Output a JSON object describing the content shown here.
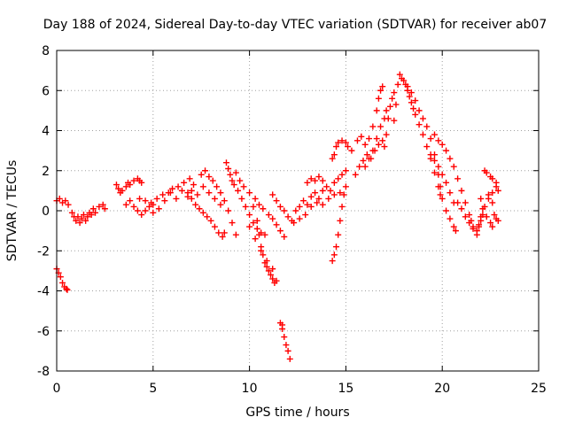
{
  "chart_data": {
    "type": "scatter",
    "title": "Day 188 of 2024, Sidereal Day-to-day VTEC variation (SDTVAR) for receiver ab07",
    "xlabel": "GPS time / hours",
    "ylabel": "SDTVAR / TECUs",
    "xlim": [
      0,
      25
    ],
    "ylim": [
      -8,
      8
    ],
    "xticks": [
      0,
      5,
      10,
      15,
      20,
      25
    ],
    "yticks": [
      -8,
      -6,
      -4,
      -2,
      0,
      2,
      4,
      6,
      8
    ],
    "grid": true,
    "marker": "+",
    "color": "#ff0000",
    "series": [
      {
        "name": "SDTVAR",
        "points": [
          [
            0.0,
            0.5
          ],
          [
            0.15,
            0.6
          ],
          [
            0.3,
            0.4
          ],
          [
            0.45,
            0.5
          ],
          [
            0.6,
            0.3
          ],
          [
            0.0,
            -2.9
          ],
          [
            0.1,
            -3.1
          ],
          [
            0.2,
            -3.3
          ],
          [
            0.3,
            -3.6
          ],
          [
            0.4,
            -3.8
          ],
          [
            0.5,
            -3.9
          ],
          [
            0.55,
            -3.95
          ],
          [
            0.8,
            -0.1
          ],
          [
            0.9,
            -0.3
          ],
          [
            1.0,
            -0.5
          ],
          [
            1.1,
            -0.3
          ],
          [
            1.2,
            -0.6
          ],
          [
            1.3,
            -0.4
          ],
          [
            1.4,
            -0.2
          ],
          [
            1.5,
            -0.5
          ],
          [
            1.6,
            -0.3
          ],
          [
            1.7,
            -0.1
          ],
          [
            1.8,
            -0.2
          ],
          [
            1.9,
            0.1
          ],
          [
            2.0,
            -0.1
          ],
          [
            2.2,
            0.2
          ],
          [
            2.4,
            0.3
          ],
          [
            2.5,
            0.1
          ],
          [
            3.1,
            1.3
          ],
          [
            3.2,
            1.1
          ],
          [
            3.3,
            0.9
          ],
          [
            3.4,
            1.0
          ],
          [
            3.6,
            1.2
          ],
          [
            3.7,
            1.4
          ],
          [
            3.8,
            1.3
          ],
          [
            4.0,
            1.5
          ],
          [
            4.2,
            1.6
          ],
          [
            4.3,
            1.5
          ],
          [
            4.4,
            1.4
          ],
          [
            3.6,
            0.3
          ],
          [
            3.8,
            0.5
          ],
          [
            4.0,
            0.2
          ],
          [
            4.2,
            0.0
          ],
          [
            4.4,
            -0.2
          ],
          [
            4.6,
            0.0
          ],
          [
            4.8,
            0.2
          ],
          [
            5.0,
            -0.1
          ],
          [
            4.3,
            0.6
          ],
          [
            4.6,
            0.5
          ],
          [
            4.9,
            0.4
          ],
          [
            5.2,
            0.6
          ],
          [
            5.5,
            0.8
          ],
          [
            5.8,
            0.9
          ],
          [
            6.0,
            1.1
          ],
          [
            6.3,
            1.2
          ],
          [
            6.6,
            1.4
          ],
          [
            6.9,
            1.6
          ],
          [
            7.1,
            1.3
          ],
          [
            5.0,
            0.3
          ],
          [
            5.3,
            0.1
          ],
          [
            5.6,
            0.5
          ],
          [
            5.9,
            0.9
          ],
          [
            6.2,
            0.6
          ],
          [
            6.5,
            1.0
          ],
          [
            6.8,
            0.7
          ],
          [
            7.0,
            1.0
          ],
          [
            7.3,
            0.8
          ],
          [
            7.6,
            1.2
          ],
          [
            7.9,
            0.9
          ],
          [
            8.2,
            0.6
          ],
          [
            8.5,
            0.3
          ],
          [
            6.8,
            0.9
          ],
          [
            7.0,
            0.6
          ],
          [
            7.2,
            0.3
          ],
          [
            7.4,
            0.1
          ],
          [
            7.6,
            -0.1
          ],
          [
            7.8,
            -0.3
          ],
          [
            8.0,
            -0.5
          ],
          [
            8.2,
            -0.8
          ],
          [
            8.4,
            -1.1
          ],
          [
            8.6,
            -1.3
          ],
          [
            8.7,
            -1.1
          ],
          [
            7.5,
            1.8
          ],
          [
            7.7,
            2.0
          ],
          [
            7.9,
            1.7
          ],
          [
            8.1,
            1.5
          ],
          [
            8.3,
            1.2
          ],
          [
            8.5,
            0.9
          ],
          [
            8.7,
            0.5
          ],
          [
            8.9,
            0.0
          ],
          [
            9.1,
            -0.6
          ],
          [
            9.3,
            -1.2
          ],
          [
            8.8,
            2.4
          ],
          [
            8.9,
            2.1
          ],
          [
            9.0,
            1.8
          ],
          [
            9.1,
            1.5
          ],
          [
            9.2,
            1.3
          ],
          [
            9.4,
            1.0
          ],
          [
            9.6,
            0.6
          ],
          [
            9.8,
            0.2
          ],
          [
            10.0,
            -0.2
          ],
          [
            10.2,
            -0.6
          ],
          [
            10.4,
            -0.9
          ],
          [
            10.6,
            -1.1
          ],
          [
            10.8,
            -1.2
          ],
          [
            9.3,
            1.9
          ],
          [
            9.5,
            1.5
          ],
          [
            9.7,
            1.2
          ],
          [
            10.0,
            0.9
          ],
          [
            10.3,
            0.6
          ],
          [
            10.5,
            0.3
          ],
          [
            10.7,
            0.1
          ],
          [
            11.0,
            -0.2
          ],
          [
            11.2,
            -0.4
          ],
          [
            11.4,
            -0.7
          ],
          [
            11.6,
            -1.0
          ],
          [
            11.8,
            -1.3
          ],
          [
            10.2,
            0.2
          ],
          [
            10.4,
            -0.5
          ],
          [
            10.5,
            -1.2
          ],
          [
            10.6,
            -1.8
          ],
          [
            10.7,
            -2.2
          ],
          [
            10.8,
            -2.6
          ],
          [
            10.9,
            -2.8
          ],
          [
            11.0,
            -3.0
          ],
          [
            11.1,
            -3.2
          ],
          [
            11.2,
            -3.4
          ],
          [
            11.3,
            -3.6
          ],
          [
            11.4,
            -3.5
          ],
          [
            10.0,
            -0.8
          ],
          [
            10.3,
            -1.4
          ],
          [
            10.6,
            -2.0
          ],
          [
            10.9,
            -2.5
          ],
          [
            11.2,
            -2.9
          ],
          [
            11.6,
            -5.6
          ],
          [
            11.7,
            -5.9
          ],
          [
            11.8,
            -6.3
          ],
          [
            11.9,
            -6.7
          ],
          [
            12.0,
            -7.0
          ],
          [
            12.1,
            -7.4
          ],
          [
            11.7,
            -5.7
          ],
          [
            11.2,
            0.8
          ],
          [
            11.4,
            0.5
          ],
          [
            11.6,
            0.2
          ],
          [
            11.8,
            0.0
          ],
          [
            12.0,
            -0.3
          ],
          [
            12.2,
            -0.5
          ],
          [
            12.3,
            -0.6
          ],
          [
            12.4,
            0.0
          ],
          [
            12.6,
            0.2
          ],
          [
            12.8,
            0.5
          ],
          [
            13.0,
            0.3
          ],
          [
            13.2,
            0.7
          ],
          [
            13.4,
            0.9
          ],
          [
            13.6,
            0.6
          ],
          [
            13.8,
            1.0
          ],
          [
            14.0,
            1.2
          ],
          [
            14.2,
            1.0
          ],
          [
            14.4,
            1.4
          ],
          [
            14.6,
            1.6
          ],
          [
            14.8,
            1.8
          ],
          [
            15.0,
            2.0
          ],
          [
            12.6,
            -0.4
          ],
          [
            12.9,
            -0.2
          ],
          [
            13.2,
            0.2
          ],
          [
            13.5,
            0.4
          ],
          [
            13.8,
            0.3
          ],
          [
            14.1,
            0.6
          ],
          [
            14.4,
            0.8
          ],
          [
            14.7,
            0.9
          ],
          [
            15.0,
            1.2
          ],
          [
            13.0,
            1.4
          ],
          [
            13.2,
            1.6
          ],
          [
            13.4,
            1.5
          ],
          [
            13.6,
            1.7
          ],
          [
            13.8,
            1.5
          ],
          [
            14.3,
            -2.5
          ],
          [
            14.4,
            -2.2
          ],
          [
            14.5,
            -1.8
          ],
          [
            14.6,
            -1.2
          ],
          [
            14.7,
            -0.5
          ],
          [
            14.8,
            0.2
          ],
          [
            14.9,
            0.8
          ],
          [
            14.3,
            2.6
          ],
          [
            14.4,
            2.8
          ],
          [
            14.5,
            3.2
          ],
          [
            14.6,
            3.4
          ],
          [
            14.8,
            3.5
          ],
          [
            15.0,
            3.4
          ],
          [
            15.1,
            3.2
          ],
          [
            15.3,
            3.0
          ],
          [
            15.5,
            1.8
          ],
          [
            15.7,
            2.2
          ],
          [
            15.9,
            2.5
          ],
          [
            16.1,
            2.8
          ],
          [
            16.3,
            2.6
          ],
          [
            16.5,
            3.0
          ],
          [
            16.7,
            3.3
          ],
          [
            16.9,
            3.5
          ],
          [
            15.6,
            3.5
          ],
          [
            15.8,
            3.7
          ],
          [
            16.0,
            3.3
          ],
          [
            16.2,
            3.6
          ],
          [
            16.4,
            4.2
          ],
          [
            16.6,
            5.0
          ],
          [
            16.7,
            5.6
          ],
          [
            16.8,
            6.0
          ],
          [
            16.9,
            6.2
          ],
          [
            16.0,
            2.2
          ],
          [
            16.2,
            2.6
          ],
          [
            16.4,
            3.0
          ],
          [
            16.6,
            3.6
          ],
          [
            16.8,
            4.2
          ],
          [
            17.0,
            4.6
          ],
          [
            17.1,
            5.0
          ],
          [
            17.0,
            3.2
          ],
          [
            17.1,
            3.8
          ],
          [
            17.2,
            4.6
          ],
          [
            17.3,
            5.2
          ],
          [
            17.4,
            5.6
          ],
          [
            17.5,
            5.9
          ],
          [
            17.5,
            4.5
          ],
          [
            17.6,
            5.3
          ],
          [
            17.7,
            6.3
          ],
          [
            17.8,
            6.8
          ],
          [
            17.9,
            6.6
          ],
          [
            18.0,
            6.5
          ],
          [
            18.1,
            6.3
          ],
          [
            18.2,
            6.0
          ],
          [
            18.3,
            5.7
          ],
          [
            18.4,
            5.4
          ],
          [
            18.5,
            5.1
          ],
          [
            18.6,
            4.8
          ],
          [
            18.2,
            6.2
          ],
          [
            18.4,
            5.9
          ],
          [
            18.6,
            5.5
          ],
          [
            18.8,
            5.0
          ],
          [
            19.0,
            4.6
          ],
          [
            19.2,
            4.2
          ],
          [
            19.4,
            3.6
          ],
          [
            19.6,
            2.8
          ],
          [
            19.8,
            1.8
          ],
          [
            19.9,
            1.2
          ],
          [
            20.0,
            0.6
          ],
          [
            20.2,
            0.0
          ],
          [
            20.4,
            -0.4
          ],
          [
            20.6,
            -0.8
          ],
          [
            20.7,
            -1.0
          ],
          [
            18.8,
            4.3
          ],
          [
            19.0,
            3.8
          ],
          [
            19.2,
            3.2
          ],
          [
            19.4,
            2.6
          ],
          [
            19.6,
            1.9
          ],
          [
            19.8,
            1.2
          ],
          [
            19.9,
            0.8
          ],
          [
            19.6,
            3.8
          ],
          [
            19.8,
            3.5
          ],
          [
            20.0,
            3.3
          ],
          [
            20.2,
            3.0
          ],
          [
            20.4,
            2.6
          ],
          [
            20.6,
            2.2
          ],
          [
            20.8,
            1.6
          ],
          [
            21.0,
            1.0
          ],
          [
            21.2,
            0.4
          ],
          [
            21.4,
            -0.2
          ],
          [
            21.5,
            -0.5
          ],
          [
            21.6,
            -0.8
          ],
          [
            19.4,
            2.8
          ],
          [
            19.6,
            2.5
          ],
          [
            19.8,
            2.2
          ],
          [
            20.0,
            1.8
          ],
          [
            20.2,
            1.4
          ],
          [
            20.4,
            0.9
          ],
          [
            20.6,
            0.4
          ],
          [
            20.8,
            0.4
          ],
          [
            21.0,
            0.1
          ],
          [
            21.2,
            -0.3
          ],
          [
            21.4,
            -0.6
          ],
          [
            21.6,
            -0.9
          ],
          [
            21.8,
            -1.2
          ],
          [
            22.0,
            -0.3
          ],
          [
            22.2,
            0.2
          ],
          [
            22.4,
            0.6
          ],
          [
            22.6,
            0.9
          ],
          [
            22.8,
            1.2
          ],
          [
            22.9,
            1.0
          ],
          [
            22.0,
            0.6
          ],
          [
            22.1,
            0.1
          ],
          [
            22.3,
            -0.3
          ],
          [
            22.5,
            -0.6
          ],
          [
            22.6,
            -0.8
          ],
          [
            22.4,
            0.8
          ],
          [
            22.6,
            0.4
          ],
          [
            22.7,
            -0.2
          ],
          [
            22.8,
            -0.4
          ],
          [
            22.9,
            -0.5
          ],
          [
            21.9,
            -0.8
          ],
          [
            22.0,
            -0.5
          ],
          [
            22.1,
            -0.2
          ],
          [
            22.2,
            2.0
          ],
          [
            22.3,
            1.9
          ],
          [
            22.5,
            1.7
          ],
          [
            22.6,
            1.6
          ],
          [
            22.8,
            1.4
          ],
          [
            21.8,
            -1.0
          ],
          [
            21.9,
            -0.7
          ]
        ]
      }
    ]
  }
}
